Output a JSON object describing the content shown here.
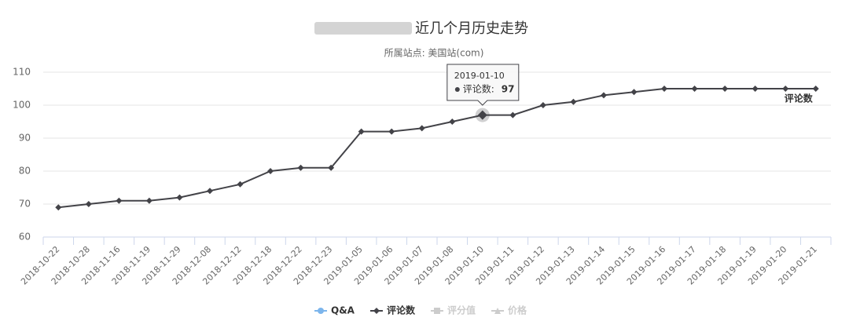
{
  "chart_data": {
    "type": "line",
    "title": "近几个月历史走势",
    "subtitle": "所属站点: 美国站(com)",
    "categories": [
      "2018-10-22",
      "2018-10-28",
      "2018-11-16",
      "2018-11-19",
      "2018-11-29",
      "2018-12-08",
      "2018-12-12",
      "2018-12-18",
      "2018-12-22",
      "2018-12-23",
      "2019-01-05",
      "2019-01-06",
      "2019-01-07",
      "2019-01-08",
      "2019-01-10",
      "2019-01-11",
      "2019-01-12",
      "2019-01-13",
      "2019-01-14",
      "2019-01-15",
      "2019-01-16",
      "2019-01-17",
      "2019-01-18",
      "2019-01-19",
      "2019-01-20",
      "2019-01-21"
    ],
    "series": [
      {
        "name": "评论数",
        "color": "#434348",
        "values": [
          69,
          70,
          71,
          71,
          72,
          74,
          76,
          80,
          81,
          81,
          92,
          92,
          93,
          95,
          97,
          97,
          100,
          101,
          103,
          104,
          105,
          105,
          105,
          105,
          105,
          105
        ]
      }
    ],
    "ylim": [
      60,
      110
    ],
    "yticks": [
      60,
      70,
      80,
      90,
      100,
      110
    ],
    "grid": true,
    "legend": [
      {
        "name": "Q&A",
        "color": "#7cb5ec",
        "symbol": "circle",
        "active": true
      },
      {
        "name": "评论数",
        "color": "#434348",
        "symbol": "diamond",
        "active": true
      },
      {
        "name": "评分值",
        "color": "#cccccc",
        "symbol": "square",
        "active": false
      },
      {
        "name": "价格",
        "color": "#cccccc",
        "symbol": "triangle",
        "active": false
      }
    ],
    "tooltip": {
      "date": "2019-01-10",
      "label": "评论数:",
      "value": 97
    }
  }
}
